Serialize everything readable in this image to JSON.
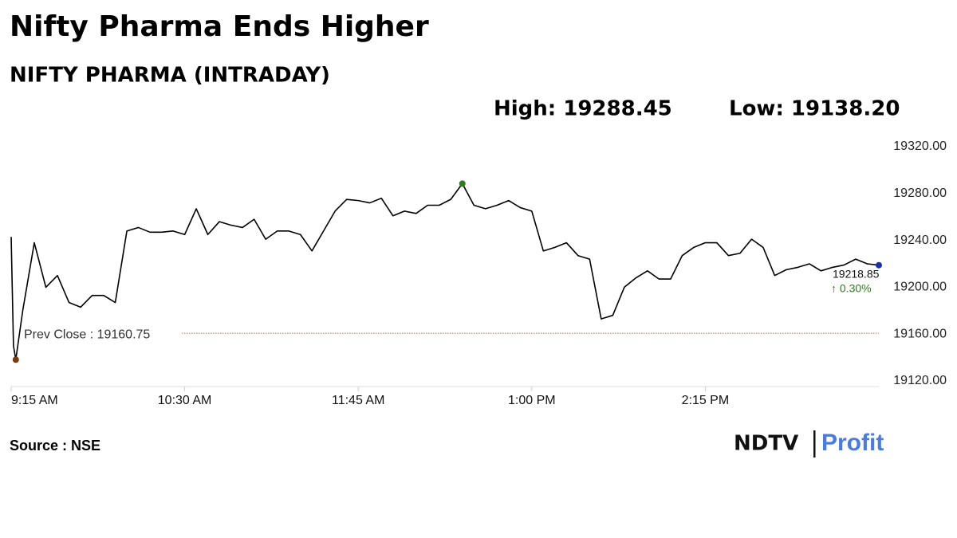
{
  "chart_data": {
    "type": "line",
    "title": "Nifty Pharma Ends Higher",
    "subtitle": "NIFTY PHARMA (INTRADAY)",
    "high_label": "High: 19288.45",
    "low_label": "Low: 19138.20",
    "prev_close": {
      "value": 19160.75,
      "label": "Prev Close : 19160.75"
    },
    "change_label": "↑ 0.30%",
    "source": "Source : NSE",
    "logo": [
      "NDTV",
      "Profit"
    ],
    "color": "#000000",
    "x": [
      "09:15",
      "09:16",
      "09:17",
      "09:20",
      "09:25",
      "09:30",
      "09:35",
      "09:40",
      "09:45",
      "09:50",
      "09:55",
      "10:00",
      "10:05",
      "10:10",
      "10:15",
      "10:20",
      "10:25",
      "10:30",
      "10:35",
      "10:40",
      "10:45",
      "10:50",
      "10:55",
      "11:00",
      "11:05",
      "11:10",
      "11:15",
      "11:20",
      "11:25",
      "11:30",
      "11:35",
      "11:40",
      "11:45",
      "11:50",
      "11:55",
      "12:00",
      "12:05",
      "12:10",
      "12:15",
      "12:20",
      "12:25",
      "12:30",
      "12:35",
      "12:40",
      "12:45",
      "12:50",
      "12:55",
      "13:00",
      "13:05",
      "13:10",
      "13:15",
      "13:20",
      "13:25",
      "13:30",
      "13:35",
      "13:40",
      "13:45",
      "13:50",
      "13:55",
      "14:00",
      "14:05",
      "14:10",
      "14:15",
      "14:20",
      "14:25",
      "14:30",
      "14:35",
      "14:40",
      "14:45",
      "14:50",
      "14:55",
      "15:00",
      "15:05",
      "15:10",
      "15:15",
      "15:20",
      "15:25",
      "15:30"
    ],
    "values": [
      19243,
      19150,
      19138.2,
      19180,
      19238,
      19200,
      19210,
      19187,
      19183,
      19193,
      19193,
      19187,
      19248,
      19251,
      19247,
      19247,
      19248,
      19245,
      19267,
      19245,
      19256,
      19253,
      19251,
      19258,
      19241,
      19248,
      19248,
      19245,
      19231,
      19248,
      19265,
      19275,
      19274,
      19272,
      19276,
      19261,
      19265,
      19263,
      19270,
      19270,
      19275,
      19288.45,
      19270,
      19267,
      19270,
      19274,
      19268,
      19265,
      19231,
      19234,
      19238,
      19227,
      19224,
      19173,
      19176,
      19200,
      19208,
      19214,
      19207,
      19207,
      19227,
      19234,
      19238,
      19238,
      19227,
      19229,
      19241,
      19234,
      19210,
      19215,
      19217,
      19220,
      19214,
      19217,
      19219,
      19224,
      19220,
      19218.85
    ],
    "xlim": [
      "09:15",
      "15:30"
    ],
    "xticks": [
      {
        "value": "09:15",
        "label": "9:15 AM"
      },
      {
        "value": "10:30",
        "label": "10:30 AM"
      },
      {
        "value": "11:45",
        "label": "11:45 AM"
      },
      {
        "value": "13:00",
        "label": "1:00 PM"
      },
      {
        "value": "14:15",
        "label": "2:15 PM"
      }
    ],
    "ylim": [
      19120,
      19320
    ],
    "yticks": [
      {
        "value": 19120,
        "label": "19120.00"
      },
      {
        "value": 19160,
        "label": "19160.00"
      },
      {
        "value": 19200,
        "label": "19200.00"
      },
      {
        "value": 19240,
        "label": "19240.00"
      },
      {
        "value": 19280,
        "label": "19280.00"
      },
      {
        "value": 19320,
        "label": "19320.00"
      }
    ],
    "grid": false
  }
}
